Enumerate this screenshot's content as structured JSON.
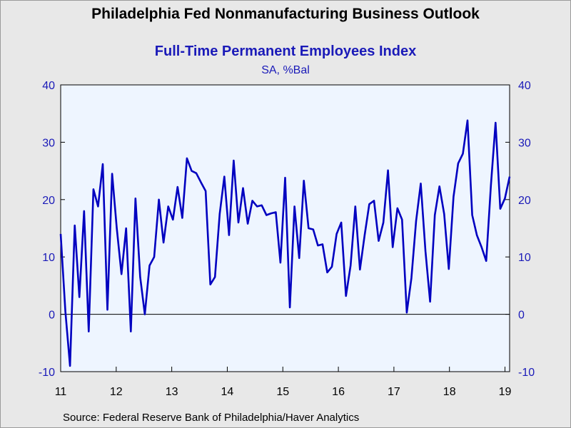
{
  "title": "Philadelphia Fed Nonmanufacturing Business Outlook",
  "subtitle": "Full-Time Permanent Employees Index",
  "units": "SA, %Bal",
  "source": "Source:  Federal Reserve Bank of Philadelphia/Haver Analytics",
  "colors": {
    "series": "#0000c0",
    "plot_background": "#eef5ff",
    "axis_text_y": "#1a1ab8",
    "axis_text_x": "#000000"
  },
  "chart_data": {
    "type": "line",
    "ylim": [
      -10,
      40
    ],
    "yticks": [
      "-10",
      "0",
      "10",
      "20",
      "30",
      "40"
    ],
    "xticks": [
      "11",
      "12",
      "13",
      "14",
      "15",
      "16",
      "17",
      "18",
      "19"
    ],
    "x_start": "2011-01",
    "x_end": "2019-02",
    "grid": false,
    "zero_line": true,
    "legend": "none",
    "series": [
      {
        "values": [
          14.0,
          0.5,
          -9.0,
          15.5,
          3.0,
          18.0,
          -3.0,
          21.8,
          18.8,
          26.2,
          0.8,
          24.5,
          15.0,
          7.0,
          15.0,
          -3.0,
          20.2,
          6.5,
          0.0,
          8.5,
          10.0,
          20.0,
          12.5,
          18.8,
          16.5,
          22.2,
          16.8,
          27.2,
          25.0,
          24.6,
          23.0,
          21.5,
          5.2,
          6.5,
          17.5,
          24.0,
          13.8,
          26.8,
          16.0,
          22.0,
          15.8,
          19.8,
          18.8,
          19.0,
          17.3,
          17.6,
          17.8,
          9.0,
          23.8,
          1.2,
          18.8,
          9.8,
          23.3,
          15.0,
          14.8,
          12.0,
          12.2,
          7.3,
          8.3,
          14.0,
          16.0,
          3.2,
          8.5,
          18.8,
          7.8,
          13.8,
          19.2,
          19.8,
          12.8,
          16.0,
          25.1,
          11.7,
          18.5,
          16.5,
          0.3,
          6.3,
          16.3,
          22.8,
          11.0,
          2.2,
          17.3,
          22.3,
          17.5,
          7.9,
          20.5,
          26.3,
          28.0,
          33.8,
          17.3,
          13.8,
          11.7,
          9.3,
          22.5,
          33.4,
          18.4,
          20.2,
          24.0
        ]
      }
    ]
  }
}
